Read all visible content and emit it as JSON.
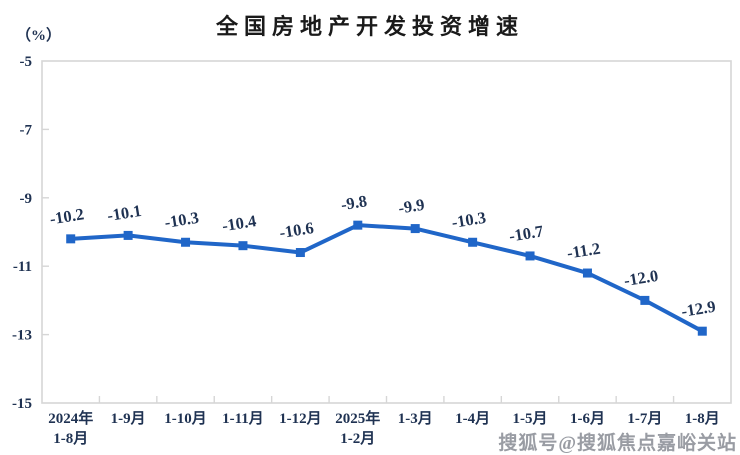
{
  "chart_data": {
    "type": "line",
    "title": "全国房地产开发投资增速",
    "unit_label": "（%）",
    "categories": [
      "2024年\n1-8月",
      "1-9月",
      "1-10月",
      "1-11月",
      "1-12月",
      "2025年\n1-2月",
      "1-3月",
      "1-4月",
      "1-5月",
      "1-6月",
      "1-7月",
      "1-8月"
    ],
    "values": [
      -10.2,
      -10.1,
      -10.3,
      -10.4,
      -10.6,
      -9.8,
      -9.9,
      -10.3,
      -10.7,
      -11.2,
      -12.0,
      -12.9
    ],
    "data_labels": [
      "-10.2",
      "-10.1",
      "-10.3",
      "-10.4",
      "-10.6",
      "-9.8",
      "-9.9",
      "-10.3",
      "-10.7",
      "-11.2",
      "-12.0",
      "-12.9"
    ],
    "ylim": [
      -15,
      -5
    ],
    "yticks": [
      -5,
      -7,
      -9,
      -11,
      -13,
      -15
    ],
    "grid": false,
    "legend": "none",
    "marker": "square",
    "line_color": "#2066C8",
    "label_color": "#1f3252",
    "axis_color": "#d6d6d6"
  },
  "watermark": {
    "text": "搜狐号@搜狐焦点嘉峪关站"
  }
}
